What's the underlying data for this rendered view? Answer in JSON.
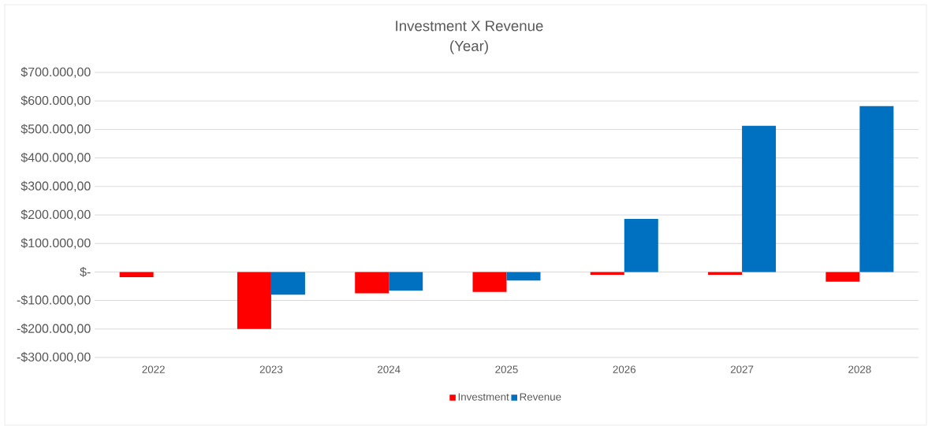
{
  "chart_data": {
    "type": "bar",
    "title": "Investment X Revenue",
    "subtitle": "(Year)",
    "categories": [
      "2022",
      "2023",
      "2024",
      "2025",
      "2026",
      "2027",
      "2028"
    ],
    "series": [
      {
        "name": "Investment",
        "color": "#ff0000",
        "values": [
          -18000,
          -200000,
          -75000,
          -70000,
          -10000,
          -10000,
          -34000
        ]
      },
      {
        "name": "Revenue",
        "color": "#0070c0",
        "values": [
          0,
          -80000,
          -65000,
          -30000,
          186000,
          513000,
          582000
        ]
      }
    ],
    "ylim": [
      -300000,
      700000
    ],
    "yticks": [
      {
        "value": -300000,
        "label": "-$300.000,00"
      },
      {
        "value": -200000,
        "label": "-$200.000,00"
      },
      {
        "value": -100000,
        "label": "-$100.000,00"
      },
      {
        "value": 0,
        "label": "$-"
      },
      {
        "value": 100000,
        "label": "$100.000,00"
      },
      {
        "value": 200000,
        "label": "$200.000,00"
      },
      {
        "value": 300000,
        "label": "$300.000,00"
      },
      {
        "value": 400000,
        "label": "$400.000,00"
      },
      {
        "value": 500000,
        "label": "$500.000,00"
      },
      {
        "value": 600000,
        "label": "$600.000,00"
      },
      {
        "value": 700000,
        "label": "$700.000,00"
      }
    ],
    "grid": "y",
    "legend": "bottom"
  }
}
